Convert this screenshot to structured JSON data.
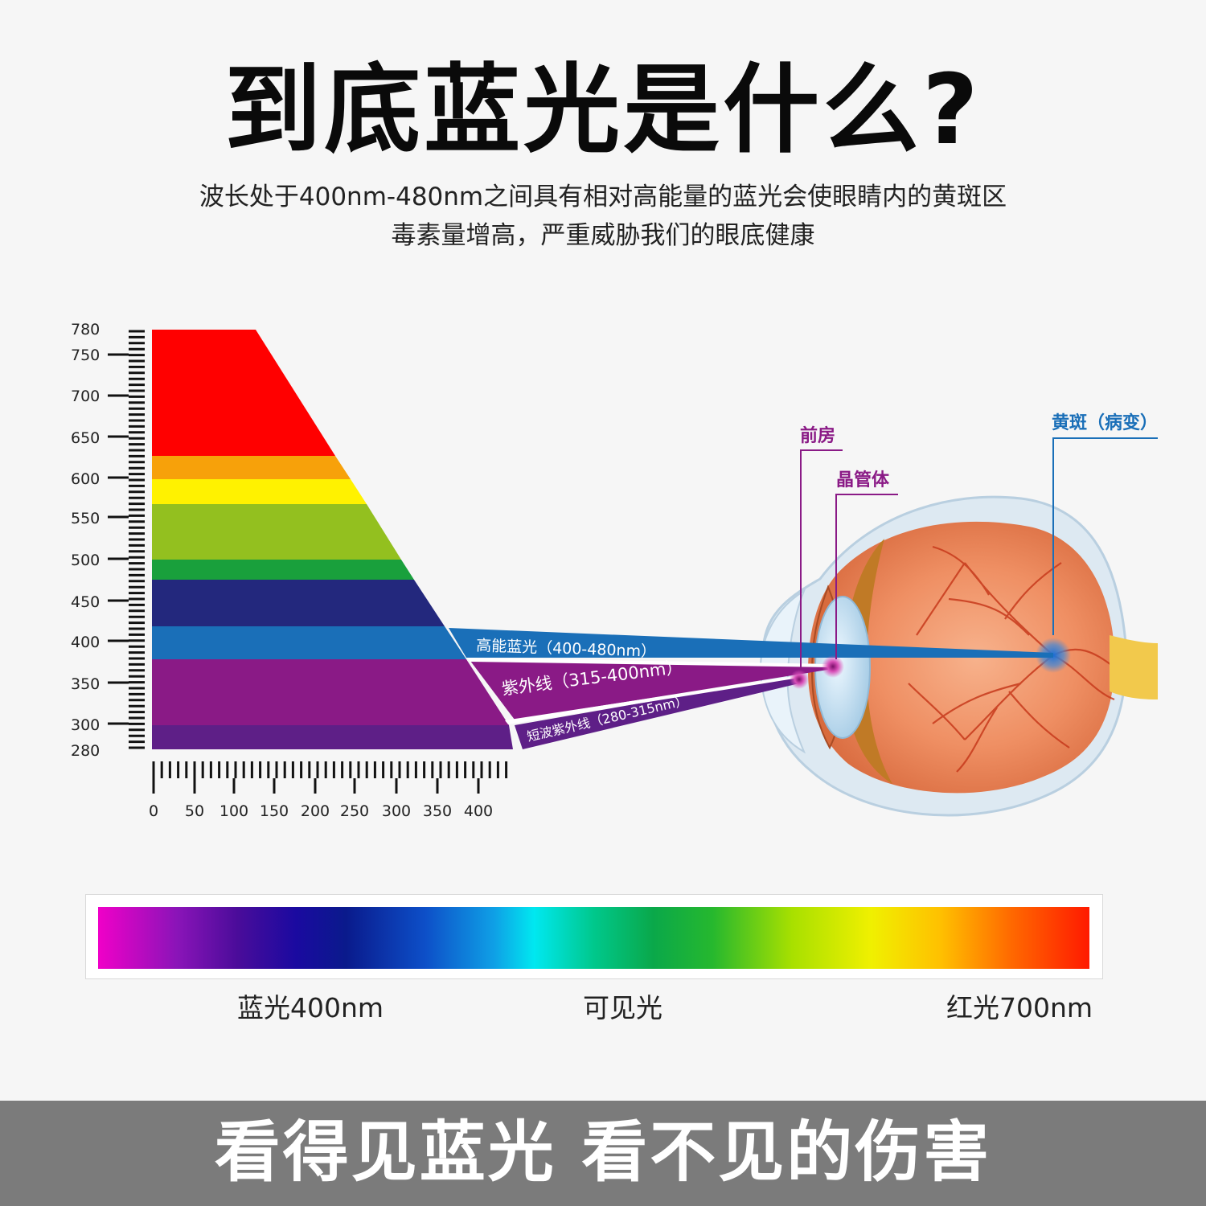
{
  "title": "到底蓝光是什么?",
  "subtitle_line1": "波长处于400nm-480nm之间具有相对高能量的蓝光会使眼睛内的黄斑区",
  "subtitle_line2": "毒素量增高，严重威胁我们的眼底健康",
  "wavelength_scale": {
    "ticks": [
      "780",
      "750",
      "700",
      "650",
      "600",
      "550",
      "500",
      "450",
      "400",
      "350",
      "300",
      "280"
    ]
  },
  "horizontal_scale": {
    "ticks": [
      "0",
      "50",
      "100",
      "150",
      "200",
      "250",
      "300",
      "350",
      "400"
    ]
  },
  "spectrum_bands": [
    {
      "color": "#ff0000"
    },
    {
      "color": "#f7a10a"
    },
    {
      "color": "#fff200"
    },
    {
      "color": "#93c01f"
    },
    {
      "color": "#19a03c"
    },
    {
      "color": "#23287d"
    },
    {
      "color": "#1a6fb8"
    },
    {
      "color": "#8a1a86"
    },
    {
      "color": "#5e1f87"
    }
  ],
  "beams": {
    "blue_light": "高能蓝光（400-480nm）",
    "uv": "紫外线（315-400nm）",
    "short_uv": "短波紫外线（280-315nm）"
  },
  "eye_labels": {
    "anterior_chamber": "前房",
    "lens": "晶管体",
    "macula": "黄斑（病变）"
  },
  "color_bar_labels": {
    "blue": "蓝光400nm",
    "visible": "可见光",
    "red": "红光700nm"
  },
  "bottom_banner": "看得见蓝光 看不见的伤害"
}
